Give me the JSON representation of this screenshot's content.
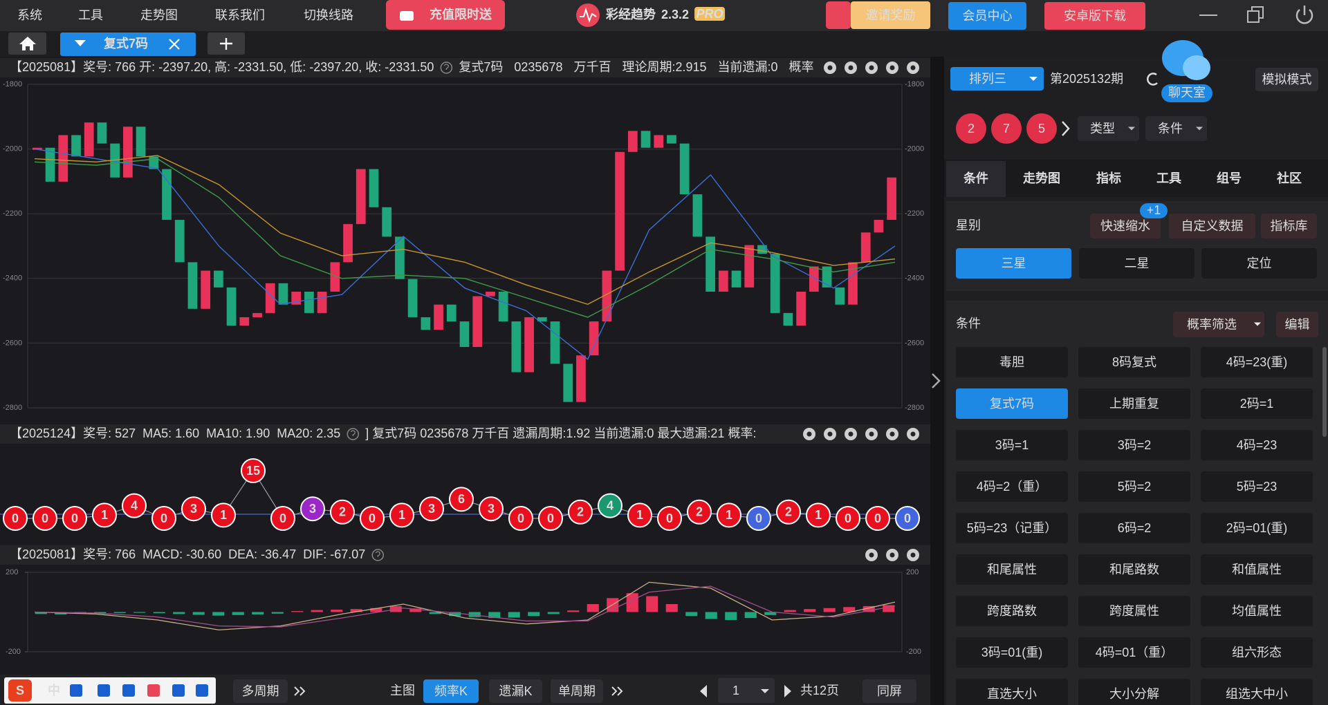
{
  "menu": [
    "系统",
    "工具",
    "走势图",
    "联系我们",
    "切换线路"
  ],
  "promo": "充值限时送",
  "app": {
    "name": "彩经趋势",
    "version": "2.3.2",
    "badge": "PRO"
  },
  "invite": "邀请奖励",
  "member": "会员中心",
  "android": "安卓版下载",
  "tab": "复式7码",
  "kline": {
    "header": {
      "left": [
        {
          "text": "【2025081】奖号: 766  开: -2397.20, 高: -2331.50, 低: -2397.20, 收: -2331.50",
          "color": "#dddddd"
        }
      ],
      "right": [
        {
          "text": "复式7码"
        },
        {
          "text": "0235678"
        },
        {
          "text": "万千百"
        },
        {
          "text": "理论周期:2.915"
        },
        {
          "text": "当前遗漏:0"
        },
        {
          "text": "概率"
        }
      ]
    },
    "ylim": [
      -1800,
      -2800
    ],
    "yticks": [
      -1800,
      -2000,
      -2200,
      -2400,
      -2600,
      -2800
    ],
    "up_color": "#e8325a",
    "down_color": "#1fa67a",
    "values": [
      -1996,
      -2101,
      -1957,
      -2023,
      -1918,
      -1983,
      -2088,
      -1931,
      -2023,
      -2062,
      -2219,
      -2350,
      -2494,
      -2376,
      -2428,
      -2546,
      -2520,
      -2507,
      -2415,
      -2481,
      -2441,
      -2507,
      -2441,
      -2350,
      -2232,
      -2062,
      -2180,
      -2271,
      -2402,
      -2520,
      -2559,
      -2481,
      -2533,
      -2612,
      -2455,
      -2441,
      -2533,
      -2690,
      -2520,
      -2533,
      -2664,
      -2782,
      -2638,
      -2533,
      -2376,
      -2009,
      -1944,
      -1996,
      -1957,
      -1983,
      -2140,
      -2271,
      -2441,
      -2376,
      -2428,
      -2297,
      -2324,
      -2507,
      -2546,
      -2441,
      -2363,
      -2428,
      -2481,
      -2350,
      -2258,
      -2219,
      -2088
    ],
    "ma": [
      {
        "color": "#3a6fd8",
        "values": [
          -2000,
          -2030,
          -2060,
          -2300,
          -2480,
          -2450,
          -2270,
          -2430,
          -2500,
          -2650,
          -2250,
          -2080,
          -2330,
          -2430,
          -2300
        ]
      },
      {
        "color": "#3f9a4a",
        "values": [
          -2040,
          -2050,
          -2030,
          -2150,
          -2330,
          -2400,
          -2390,
          -2400,
          -2460,
          -2520,
          -2420,
          -2310,
          -2340,
          -2380,
          -2350
        ]
      },
      {
        "color": "#c8962a",
        "values": [
          -2030,
          -2040,
          -2020,
          -2110,
          -2260,
          -2330,
          -2310,
          -2350,
          -2420,
          -2480,
          -2380,
          -2290,
          -2320,
          -2360,
          -2340
        ]
      }
    ]
  },
  "omission": {
    "header": {
      "left": [
        {
          "text": "【2025124】奖号: 527",
          "color": "#dddddd"
        },
        {
          "text": "MA5: 1.60",
          "color": "#5b78ff"
        },
        {
          "text": "MA10: 1.90",
          "color": "#3cb371"
        },
        {
          "text": "MA20: 2.35",
          "color": "#cc33cc"
        }
      ],
      "right": [
        {
          "text": "]  复式7码  0235678  万千百  遗漏周期:1.92  当前遗漏:0  最大遗漏:21  概率:"
        }
      ]
    },
    "values": [
      0,
      0,
      0,
      1,
      4,
      0,
      3,
      1,
      15,
      0,
      3,
      2,
      0,
      1,
      3,
      6,
      3,
      0,
      0,
      2,
      4,
      1,
      0,
      2,
      1,
      0,
      2,
      1,
      0,
      0,
      0
    ],
    "colors": [
      "#e8101e",
      "#e8101e",
      "#e8101e",
      "#e8101e",
      "#e8101e",
      "#e8101e",
      "#e8101e",
      "#e8101e",
      "#e8101e",
      "#e8101e",
      "#9b27c9",
      "#e8101e",
      "#e8101e",
      "#e8101e",
      "#e8101e",
      "#e8101e",
      "#e8101e",
      "#e8101e",
      "#e8101e",
      "#e8101e",
      "#1a9970",
      "#e8101e",
      "#e8101e",
      "#e8101e",
      "#e8101e",
      "#4466dd",
      "#e8101e",
      "#e8101e",
      "#e8101e",
      "#e8101e",
      "#4466dd"
    ]
  },
  "macd": {
    "header": {
      "left": [
        {
          "text": "【2025081】奖号: 766",
          "color": "#dddddd"
        },
        {
          "text": "MACD: -30.60",
          "color": "#26a69a"
        },
        {
          "text": "DEA: -36.47",
          "color": "#a0508a"
        },
        {
          "text": "DIF: -67.07",
          "color": "#c8b08a"
        }
      ],
      "right": []
    },
    "ylim": [
      200,
      -200
    ],
    "yticks": [
      200,
      -200
    ],
    "up_color": "#e8325a",
    "down_color": "#1fa67a",
    "bars": [
      -10,
      -12,
      -8,
      -6,
      -5,
      -4,
      -6,
      -10,
      -14,
      -18,
      -15,
      -12,
      -8,
      5,
      10,
      12,
      15,
      20,
      30,
      18,
      -10,
      -20,
      -25,
      -30,
      -28,
      -20,
      -10,
      8,
      40,
      70,
      95,
      80,
      40,
      -20,
      -35,
      -40,
      -30,
      -15,
      10,
      15,
      20,
      25,
      30,
      35
    ],
    "dif": {
      "color": "#c8b08a",
      "values": [
        0,
        -10,
        -40,
        -90,
        -70,
        -10,
        40,
        -30,
        -60,
        -40,
        150,
        120,
        -40,
        -20,
        50
      ]
    },
    "dea": {
      "color": "#a0508a",
      "values": [
        0,
        -5,
        -25,
        -70,
        -75,
        -30,
        20,
        -10,
        -45,
        -45,
        100,
        130,
        0,
        -25,
        30
      ]
    }
  },
  "sidebar": {
    "lottery": "排列三",
    "period": "第2025132期",
    "chat": "聊天室",
    "mode": "模拟模式",
    "balls": [
      2,
      7,
      5
    ],
    "type": "类型",
    "condition": "条件",
    "tabs": [
      "条件",
      "走势图",
      "指标",
      "工具",
      "组号",
      "社区"
    ],
    "active_tab": 0,
    "star_label": "星别",
    "star_tools": [
      "快速缩水",
      "自定义数据",
      "指标库"
    ],
    "badge": "+1",
    "stars": [
      "三星",
      "二星",
      "定位"
    ],
    "active_star": 0,
    "cond_label": "条件",
    "filter": "概率筛选",
    "edit": "编辑",
    "buttons": [
      [
        "毒胆",
        "8码复式",
        "4码=23(重)"
      ],
      [
        "复式7码",
        "上期重复",
        "2码=1"
      ],
      [
        "3码=1",
        "3码=2",
        "4码=23"
      ],
      [
        "4码=2（重）",
        "5码=2",
        "5码=23"
      ],
      [
        "5码=23（记重）",
        "6码=2",
        "2码=01(重)"
      ],
      [
        "和尾属性",
        "和尾路数",
        "和值属性"
      ],
      [
        "跨度路数",
        "跨度属性",
        "均值属性"
      ],
      [
        "3码=01(重)",
        "4码=01（重）",
        "组六形态"
      ],
      [
        "直选大小",
        "大小分解",
        "组选大中小"
      ]
    ],
    "active_button": [
      1,
      0
    ]
  },
  "footer": {
    "ime": {
      "logo": "S",
      "lang": "中"
    },
    "multi": "多周期",
    "main": "主图",
    "modes": [
      "频率K",
      "遗漏K",
      "单周期"
    ],
    "active_mode": 0,
    "page": "1",
    "pages": "共12页",
    "same": "同屏"
  }
}
